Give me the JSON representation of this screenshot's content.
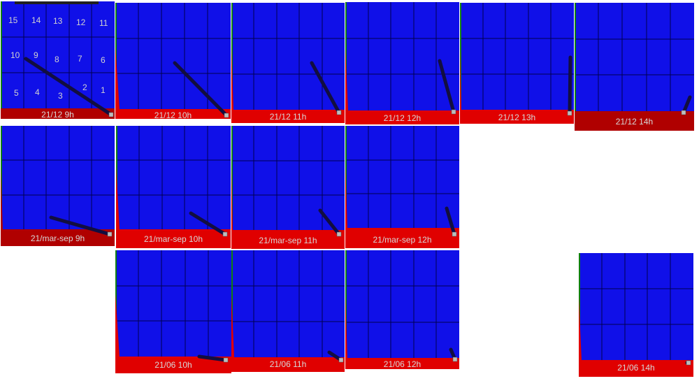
{
  "colors": {
    "panel_blue": "#1010e8",
    "ground_red": "#e00000",
    "shadow_dark": "#120e40",
    "grid_line": "#000050",
    "edge_green": "#108010",
    "marker": "#bdbdbd"
  },
  "panels": [
    {
      "label": "21/12 9h",
      "cell_numbers": [
        "15",
        "14",
        "13",
        "12",
        "11",
        "10",
        "9",
        "8",
        "7",
        "6",
        "5",
        "4",
        "3",
        "2",
        "1"
      ]
    },
    {
      "label": "21/12 10h"
    },
    {
      "label": "21/12 11h"
    },
    {
      "label": "21/12 12h"
    },
    {
      "label": "21/12 13h"
    },
    {
      "label": "21/12 14h"
    },
    {
      "label": "21/mar-sep 9h"
    },
    {
      "label": "21/mar-sep 10h"
    },
    {
      "label": "21/mar-sep 11h"
    },
    {
      "label": "21/mar-sep 12h"
    },
    {
      "label": "21/06 10h"
    },
    {
      "label": "21/06 11h"
    },
    {
      "label": "21/06 12h"
    },
    {
      "label": "21/06 14h"
    }
  ]
}
